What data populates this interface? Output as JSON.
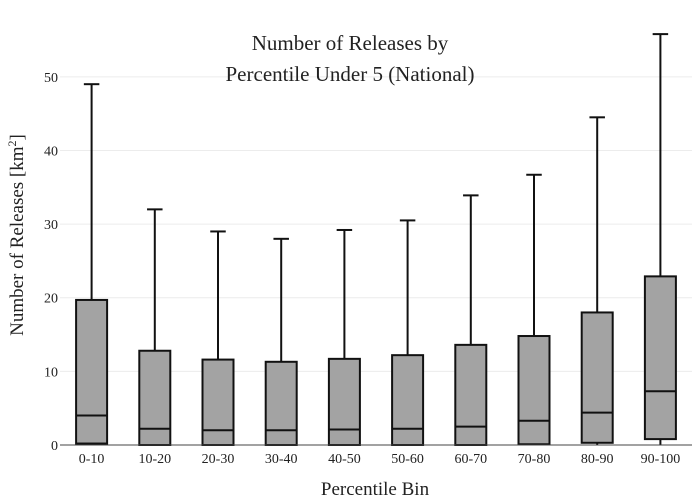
{
  "chart_data": {
    "type": "box",
    "title_lines": [
      "Number of Releases by",
      "Percentile Under 5 (National)"
    ],
    "xlabel": "Percentile Bin",
    "ylabel_main": "Number of Releases  [km",
    "ylabel_sup": "2",
    "ylabel_end": "]",
    "ylim": [
      0,
      55
    ],
    "yticks": [
      0,
      10,
      20,
      30,
      40,
      50
    ],
    "grid": true,
    "box_color": "#a3a3a3",
    "line_color": "#111111",
    "categories": [
      "0-10",
      "10-20",
      "20-30",
      "30-40",
      "40-50",
      "50-60",
      "60-70",
      "70-80",
      "80-90",
      "90-100"
    ],
    "boxes": [
      {
        "min": 0,
        "q1": 0.2,
        "median": 4.0,
        "q3": 19.7,
        "max": 49.0
      },
      {
        "min": 0,
        "q1": 0.0,
        "median": 2.2,
        "q3": 12.8,
        "max": 32.0
      },
      {
        "min": 0,
        "q1": 0.0,
        "median": 2.0,
        "q3": 11.6,
        "max": 29.0
      },
      {
        "min": 0,
        "q1": 0.0,
        "median": 2.0,
        "q3": 11.3,
        "max": 28.0
      },
      {
        "min": 0,
        "q1": 0.0,
        "median": 2.1,
        "q3": 11.7,
        "max": 29.2
      },
      {
        "min": 0,
        "q1": 0.0,
        "median": 2.2,
        "q3": 12.2,
        "max": 30.5
      },
      {
        "min": 0,
        "q1": 0.0,
        "median": 2.5,
        "q3": 13.6,
        "max": 33.9
      },
      {
        "min": 0,
        "q1": 0.1,
        "median": 3.3,
        "q3": 14.8,
        "max": 36.7
      },
      {
        "min": 0,
        "q1": 0.3,
        "median": 4.4,
        "q3": 18.0,
        "max": 44.5
      },
      {
        "min": 0,
        "q1": 0.8,
        "median": 7.3,
        "q3": 22.9,
        "max": 55.8
      }
    ]
  }
}
